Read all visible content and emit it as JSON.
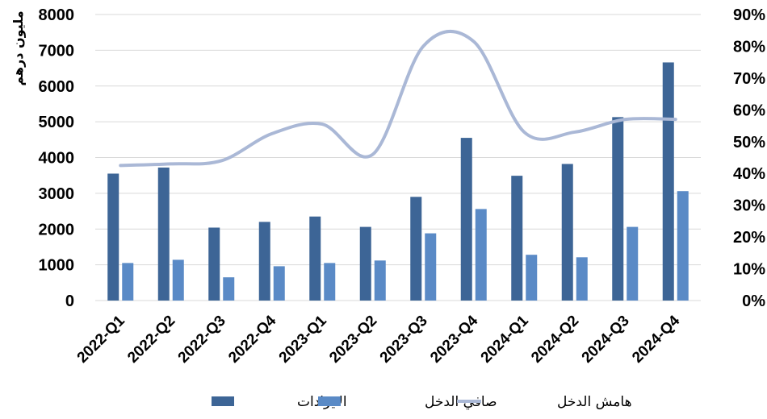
{
  "chart_data": {
    "type": "bar",
    "ylabel": "مليون درهم",
    "ylim": [
      0,
      8000
    ],
    "y_ticks": [
      "0",
      "1000",
      "2000",
      "3000",
      "4000",
      "5000",
      "6000",
      "7000",
      "8000"
    ],
    "y2lim": [
      0,
      90
    ],
    "y2_ticks": [
      "0%",
      "10%",
      "20%",
      "30%",
      "40%",
      "50%",
      "60%",
      "70%",
      "80%",
      "90%"
    ],
    "categories": [
      "2022-Q1",
      "2022-Q2",
      "2022-Q3",
      "2022-Q4",
      "2023-Q1",
      "2023-Q2",
      "2023-Q3",
      "2023-Q4",
      "2024-Q1",
      "2024-Q2",
      "2024-Q3",
      "2024-Q4"
    ],
    "series": [
      {
        "name": "الايرادات",
        "kind": "bar",
        "axis": "left",
        "color": "#3d6596",
        "values": [
          3550,
          3720,
          2040,
          2200,
          2350,
          2060,
          2900,
          4550,
          3490,
          3820,
          5130,
          6660
        ]
      },
      {
        "name": "صافي الدخل",
        "kind": "bar",
        "axis": "left",
        "color": "#5a8ac6",
        "values": [
          1050,
          1140,
          650,
          960,
          1050,
          1120,
          1880,
          2560,
          1280,
          1210,
          2060,
          3060
        ]
      },
      {
        "name": "هامش الدخل",
        "kind": "line",
        "axis": "right",
        "unit": "%",
        "color": "#aab8d6",
        "values": [
          42.5,
          43,
          44,
          52.5,
          55.5,
          46,
          80,
          81.5,
          53,
          53,
          57,
          57
        ]
      }
    ],
    "grid": true,
    "legend": "bottom"
  }
}
